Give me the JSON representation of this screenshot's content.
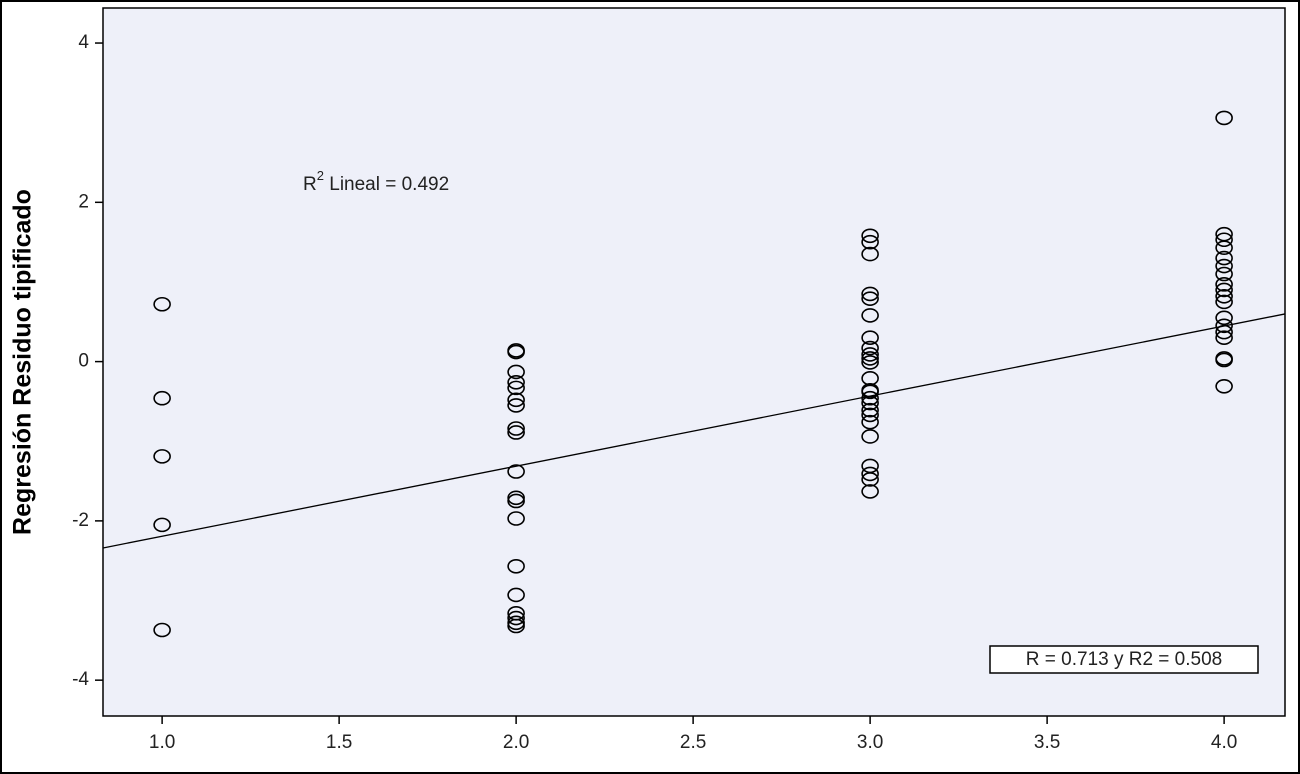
{
  "chart_data": {
    "type": "scatter",
    "y_label": "Regresión Residuo tipificado",
    "annotation": {
      "prefix": "R",
      "superscript": "2",
      "suffix": " Lineal = 0.492"
    },
    "box_annotation": "R = 0.713 y R2 = 0.508",
    "xlim": [
      0.833,
      4.172
    ],
    "ylim": [
      -4.45,
      4.44
    ],
    "xticks": [
      {
        "value": 1,
        "label": "1.0"
      },
      1.5,
      {
        "value": 2,
        "label": "2.0"
      },
      2.5,
      {
        "value": 3,
        "label": "3.0"
      },
      3.5,
      {
        "value": 4,
        "label": "4.0"
      }
    ],
    "yticks": [
      -4,
      -2,
      0,
      2,
      4
    ],
    "fit_line": {
      "slope": 0.88,
      "intercept": -3.073
    },
    "marker_color": "#000000",
    "background": "#eef0f9",
    "x": [
      1,
      1,
      1,
      1,
      1,
      2,
      2,
      2,
      2,
      2,
      2,
      2,
      2,
      2,
      2,
      2,
      2,
      2,
      2,
      2,
      2,
      2,
      2,
      2,
      3,
      3,
      3,
      3,
      3,
      3,
      3,
      3,
      3,
      3,
      3,
      3,
      3,
      3,
      3,
      3,
      3,
      3,
      3,
      3,
      3,
      3,
      3,
      3,
      4,
      4,
      4,
      4,
      4,
      4,
      4,
      4,
      4,
      4,
      4,
      4,
      4,
      4,
      4,
      4,
      4,
      4
    ],
    "y": [
      0.72,
      -0.46,
      -1.19,
      -2.05,
      -3.37,
      0.14,
      0.12,
      -0.13,
      -0.26,
      -0.33,
      -0.48,
      -0.55,
      -0.84,
      -0.89,
      -1.38,
      -1.71,
      -1.75,
      -1.97,
      -2.57,
      -2.93,
      -3.16,
      -3.22,
      -3.28,
      -3.32,
      1.58,
      1.5,
      1.35,
      0.85,
      0.79,
      0.58,
      0.3,
      0.17,
      0.09,
      0.04,
      -0.01,
      -0.21,
      -0.36,
      -0.38,
      -0.46,
      -0.52,
      -0.61,
      -0.67,
      -0.76,
      -0.94,
      -1.31,
      -1.41,
      -1.48,
      -1.63,
      3.06,
      1.6,
      1.53,
      1.43,
      1.3,
      1.2,
      1.1,
      0.97,
      0.9,
      0.82,
      0.75,
      0.55,
      0.45,
      0.37,
      0.3,
      0.04,
      0.02,
      -0.31
    ]
  }
}
